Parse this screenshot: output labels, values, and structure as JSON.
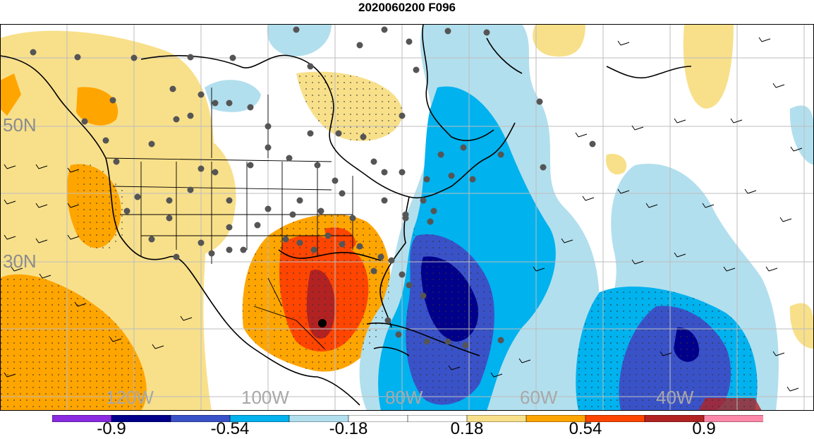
{
  "title": "2020060200 F096",
  "lat_labels": [
    "50N",
    "30N"
  ],
  "lon_labels": [
    "120W",
    "100W",
    "80W",
    "60W",
    "40W"
  ],
  "colorbar": {
    "colors": [
      "#8a2be2",
      "#00008b",
      "#3a52c8",
      "#00b2ee",
      "#b2dfee",
      "#ffffff",
      "#ffffff",
      "#f8e08a",
      "#ffa500",
      "#ff4500",
      "#b22222",
      "#ff88aa"
    ],
    "tick_labels": [
      "-0.9",
      "-0.54",
      "-0.18",
      "0.18",
      "0.54",
      "0.9"
    ]
  }
}
